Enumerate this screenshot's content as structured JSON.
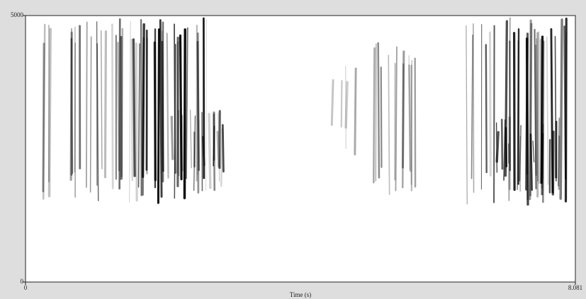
{
  "chart_data": {
    "type": "spectrogram",
    "xlabel": "Time (s)",
    "xlim": [
      0,
      8.081
    ],
    "xticks": [
      0,
      8.081
    ],
    "ylim": [
      0,
      5000
    ],
    "yticks": [
      0,
      5000
    ]
  }
}
